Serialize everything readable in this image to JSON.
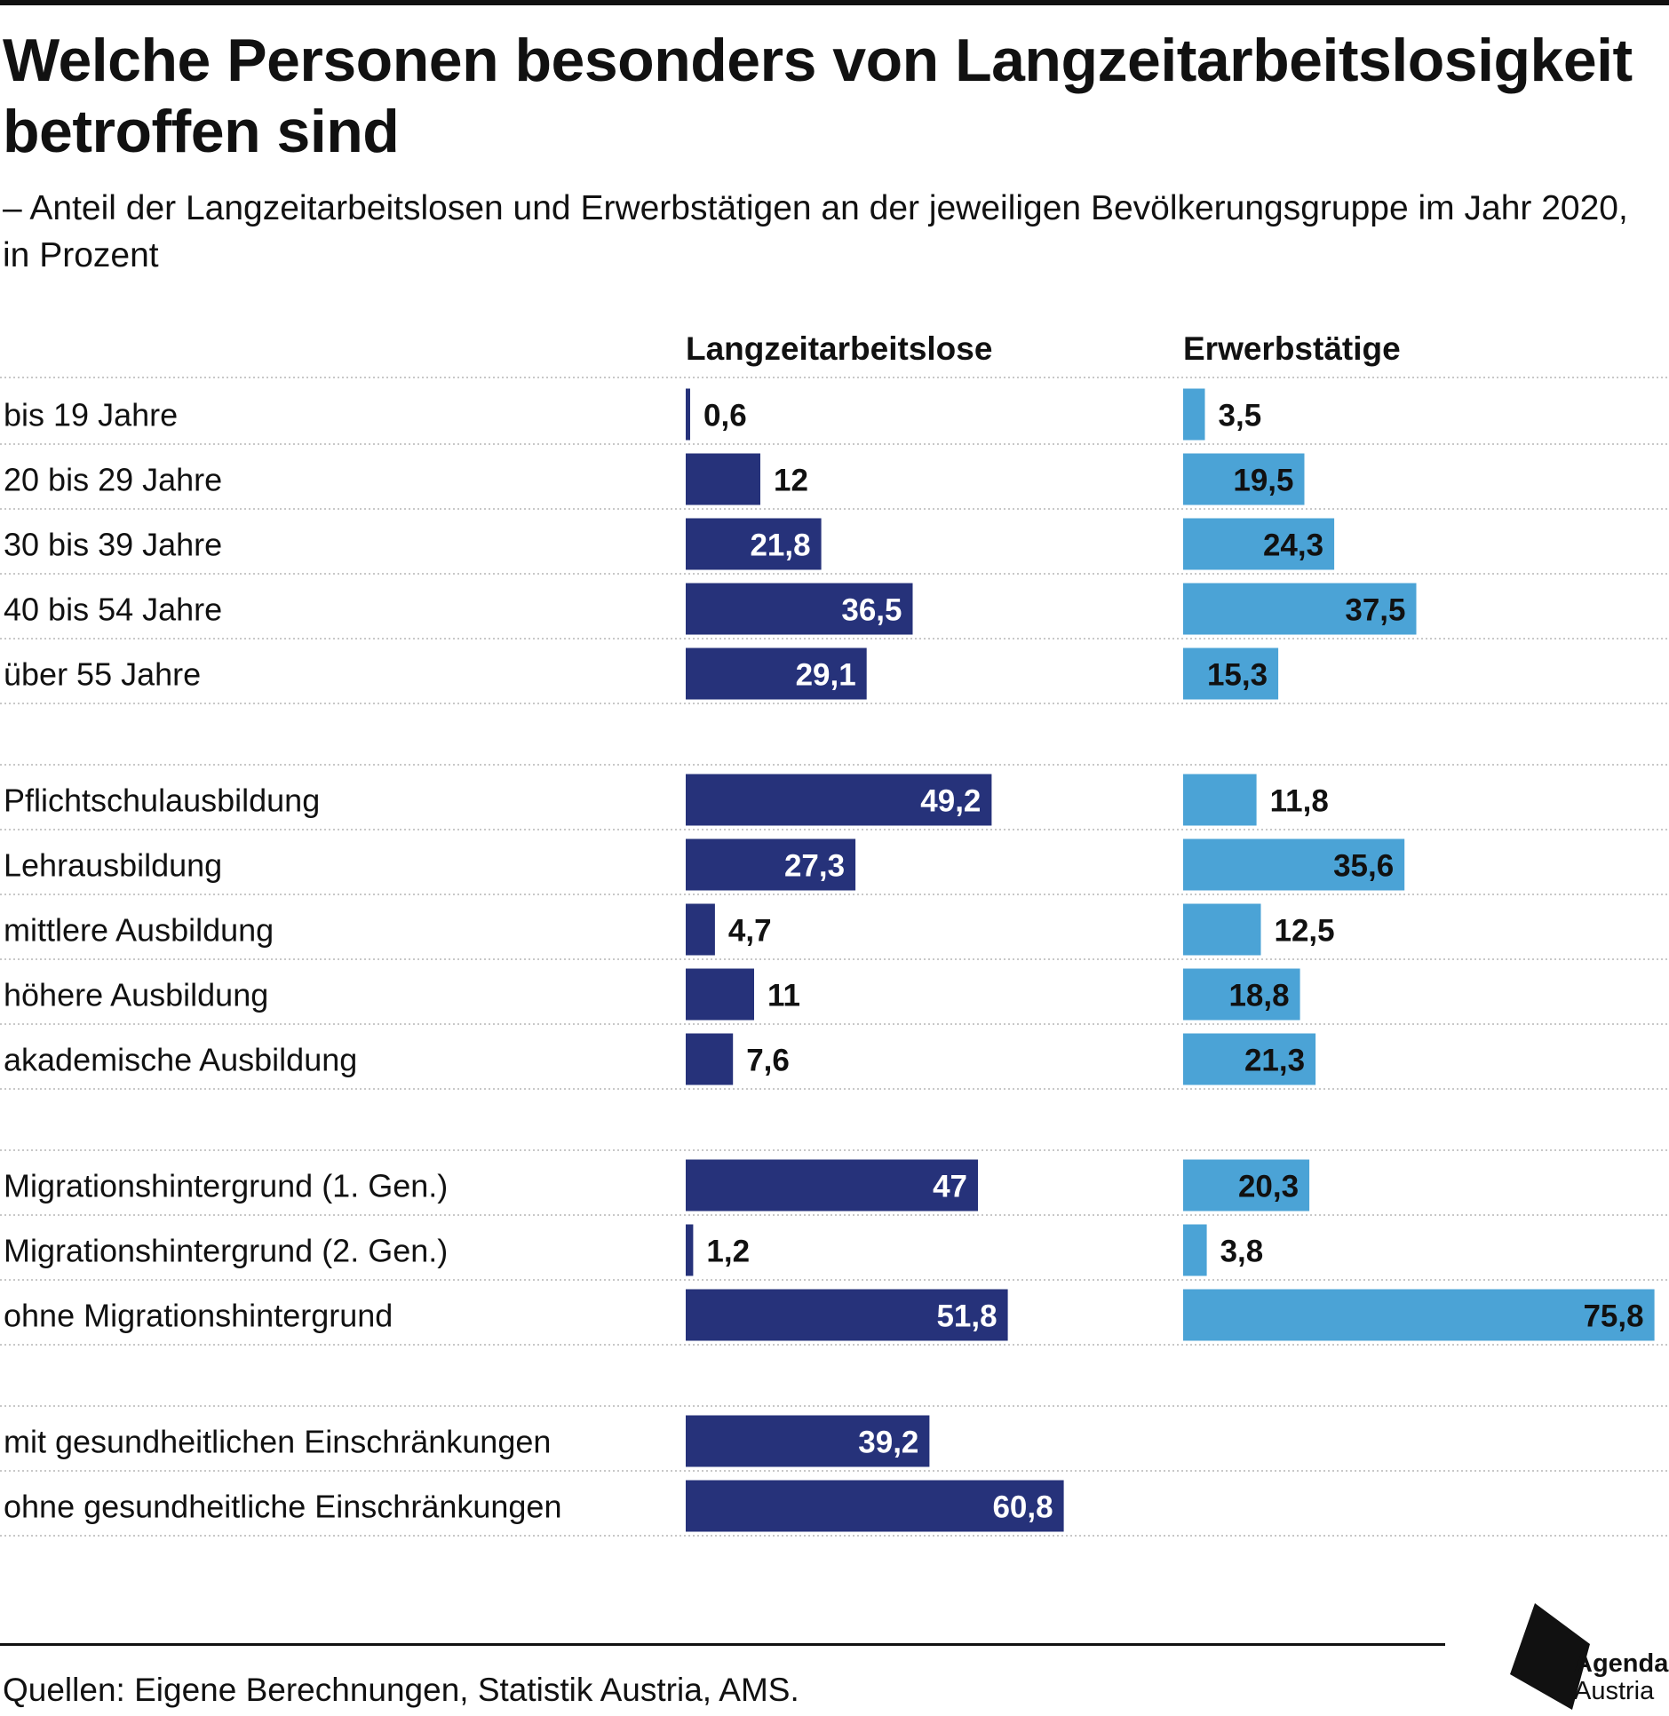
{
  "title": "Welche Personen besonders von Langzeitarbeitslosigkeit betroffen sind",
  "subtitle": "– Anteil der Langzeitarbeitslosen und Erwerbstätigen an der jeweiligen Bevölkerungsgruppe im Jahr 2020, in Prozent",
  "source": "Quellen: Eigene Berechnungen, Statistik Austria, AMS.",
  "logo": {
    "line1": "Agenda",
    "line2": "Austria"
  },
  "colors": {
    "langzeit": "#26327a",
    "erwerb": "#4ba3d6",
    "grid": "#c8c8c8"
  },
  "chart_data": {
    "type": "bar",
    "orientation": "horizontal",
    "series": [
      {
        "name": "Langzeitarbeitslose",
        "values": [
          0.6,
          12,
          21.8,
          36.5,
          29.1,
          49.2,
          27.3,
          4.7,
          11,
          7.6,
          47,
          1.2,
          51.8,
          39.2,
          60.8
        ]
      },
      {
        "name": "Erwerbstätige",
        "values": [
          3.5,
          19.5,
          24.3,
          37.5,
          15.3,
          11.8,
          35.6,
          12.5,
          18.8,
          21.3,
          20.3,
          3.8,
          75.8,
          null,
          null
        ]
      }
    ],
    "groups": [
      [
        "bis 19 Jahre",
        "20 bis 29 Jahre",
        "30 bis 39 Jahre",
        "40 bis 54 Jahre",
        "über 55 Jahre"
      ],
      [
        "Pflichtschulausbildung",
        "Lehrausbildung",
        "mittlere Ausbildung",
        "höhere Ausbildung",
        "akademische Ausbildung"
      ],
      [
        "Migrationshintergrund (1. Gen.)",
        "Migrationshintergrund (2. Gen.)",
        "ohne Migrationshintergrund"
      ],
      [
        "mit gesundheitlichen Einschränkungen",
        "ohne gesundheitliche Einschränkungen"
      ]
    ],
    "value_labels": [
      [
        "0,6",
        "12",
        "21,8",
        "36,5",
        "29,1",
        "49,2",
        "27,3",
        "4,7",
        "11",
        "7,6",
        "47",
        "1,2",
        "51,8",
        "39,2",
        "60,8"
      ],
      [
        "3,5",
        "19,5",
        "24,3",
        "37,5",
        "15,3",
        "11,8",
        "35,6",
        "12,5",
        "18,8",
        "21,3",
        "20,3",
        "3,8",
        "75,8",
        null,
        null
      ]
    ],
    "xlim": [
      0,
      100
    ],
    "legend": "column headers above bars"
  }
}
